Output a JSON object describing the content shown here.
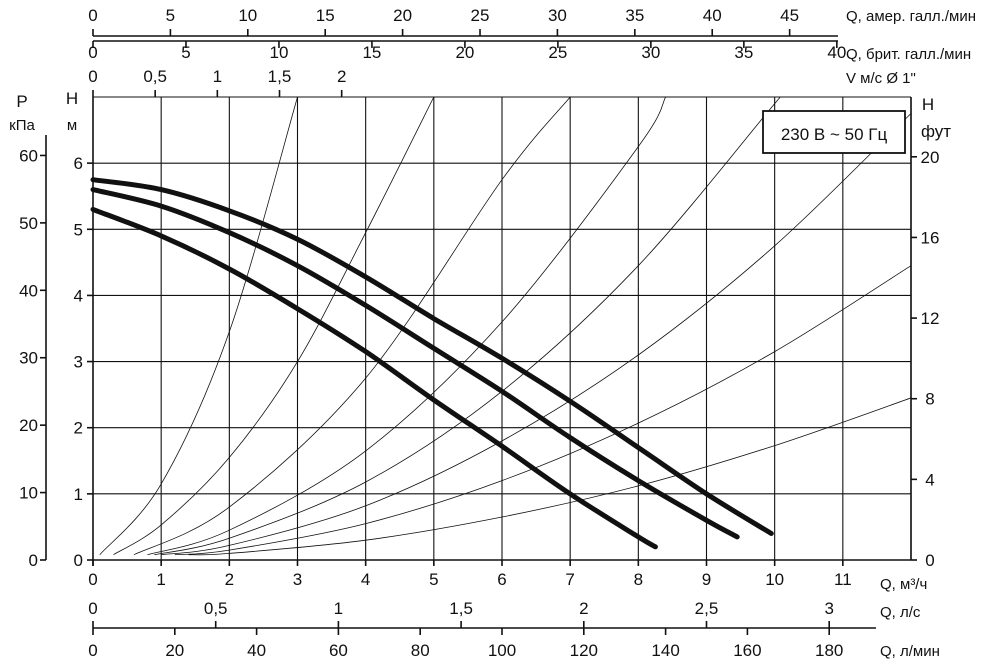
{
  "chart_data": {
    "type": "line",
    "title": "",
    "note": "230 В ~ 50 Гц",
    "xlabel": "Q, м³/ч",
    "ylabel_left_head": "H",
    "ylabel_left_head_unit": "м",
    "ylabel_left_pressure": "P",
    "ylabel_left_pressure_unit": "кПа",
    "ylabel_right": "H",
    "ylabel_right_unit": "фут",
    "xlim": [
      0,
      12
    ],
    "ylim": [
      0,
      7
    ],
    "grid": true,
    "x_ticks": [
      "0",
      "1",
      "2",
      "3",
      "4",
      "5",
      "6",
      "7",
      "8",
      "9",
      "10",
      "11"
    ],
    "y_ticks_head": [
      "0",
      "1",
      "2",
      "3",
      "4",
      "5",
      "6"
    ],
    "y_ticks_pressure": [
      "0",
      "10",
      "20",
      "30",
      "40",
      "50",
      "60"
    ],
    "y_ticks_feet": [
      "0",
      "4",
      "8",
      "12",
      "16",
      "20"
    ],
    "secondary_axes": {
      "usgpm": {
        "label": "Q, амер. галл./мин",
        "ticks": [
          "0",
          "5",
          "10",
          "15",
          "20",
          "25",
          "30",
          "35",
          "40",
          "45"
        ]
      },
      "impgpm": {
        "label": "Q, брит. галл./мин",
        "ticks": [
          "0",
          "5",
          "10",
          "15",
          "20",
          "25",
          "30",
          "35",
          "40"
        ]
      },
      "velocity": {
        "label": "V м/с Ø 1\"",
        "ticks": [
          "0",
          "0,5",
          "1",
          "1,5",
          "2"
        ]
      },
      "lps": {
        "label": "Q, л/с",
        "ticks": [
          "0",
          "0,5",
          "1",
          "1,5",
          "2",
          "2,5",
          "3"
        ]
      },
      "lpm": {
        "label": "Q, л/мин",
        "ticks": [
          "0",
          "20",
          "40",
          "60",
          "80",
          "100",
          "120",
          "140",
          "160",
          "180"
        ]
      }
    },
    "series": [
      {
        "values": [
          [
            0,
            5.75
          ],
          [
            1,
            5.6
          ],
          [
            2,
            5.28
          ],
          [
            3,
            4.85
          ],
          [
            4,
            4.28
          ],
          [
            5,
            3.65
          ],
          [
            6,
            3.05
          ],
          [
            7,
            2.4
          ],
          [
            8,
            1.7
          ],
          [
            9,
            1.0
          ],
          [
            9.95,
            0.4
          ]
        ]
      },
      {
        "values": [
          [
            0,
            5.6
          ],
          [
            1,
            5.35
          ],
          [
            2,
            4.95
          ],
          [
            3,
            4.45
          ],
          [
            4,
            3.85
          ],
          [
            5,
            3.2
          ],
          [
            6,
            2.55
          ],
          [
            7,
            1.85
          ],
          [
            8,
            1.2
          ],
          [
            9,
            0.6
          ],
          [
            9.45,
            0.35
          ]
        ]
      },
      {
        "values": [
          [
            0,
            5.3
          ],
          [
            1,
            4.9
          ],
          [
            2,
            4.4
          ],
          [
            3,
            3.8
          ],
          [
            4,
            3.15
          ],
          [
            5,
            2.42
          ],
          [
            6,
            1.72
          ],
          [
            7,
            1.0
          ],
          [
            8,
            0.35
          ],
          [
            8.25,
            0.2
          ]
        ]
      }
    ],
    "system_curves": [
      {
        "values": [
          [
            0.1,
            0.08
          ],
          [
            1,
            1.15
          ],
          [
            2,
            3.45
          ],
          [
            3,
            7.0
          ]
        ]
      },
      {
        "values": [
          [
            0.3,
            0.08
          ],
          [
            1,
            0.53
          ],
          [
            2,
            1.55
          ],
          [
            3,
            3.0
          ],
          [
            4,
            4.95
          ],
          [
            5,
            7.0
          ]
        ]
      },
      {
        "values": [
          [
            0.6,
            0.08
          ],
          [
            2,
            0.8
          ],
          [
            4,
            2.75
          ],
          [
            6,
            5.75
          ],
          [
            7,
            7.0
          ]
        ]
      },
      {
        "values": [
          [
            0.8,
            0.08
          ],
          [
            2,
            0.45
          ],
          [
            4,
            1.65
          ],
          [
            6,
            3.6
          ],
          [
            8,
            6.25
          ],
          [
            8.4,
            7.0
          ]
        ]
      },
      {
        "values": [
          [
            0.9,
            0.08
          ],
          [
            2,
            0.33
          ],
          [
            4,
            1.18
          ],
          [
            6,
            2.55
          ],
          [
            8,
            4.45
          ],
          [
            10,
            6.9
          ],
          [
            10.1,
            7.0
          ]
        ]
      },
      {
        "values": [
          [
            1.0,
            0.08
          ],
          [
            2,
            0.22
          ],
          [
            4,
            0.82
          ],
          [
            6,
            1.8
          ],
          [
            8,
            3.1
          ],
          [
            10,
            4.75
          ],
          [
            12,
            6.75
          ]
        ]
      },
      {
        "values": [
          [
            1.2,
            0.08
          ],
          [
            2,
            0.15
          ],
          [
            4,
            0.55
          ],
          [
            6,
            1.2
          ],
          [
            8,
            2.07
          ],
          [
            10,
            3.15
          ],
          [
            12,
            4.45
          ]
        ]
      },
      {
        "values": [
          [
            1.4,
            0.08
          ],
          [
            2,
            0.1
          ],
          [
            4,
            0.3
          ],
          [
            6,
            0.65
          ],
          [
            8,
            1.12
          ],
          [
            10,
            1.73
          ],
          [
            12,
            2.45
          ]
        ]
      }
    ]
  }
}
